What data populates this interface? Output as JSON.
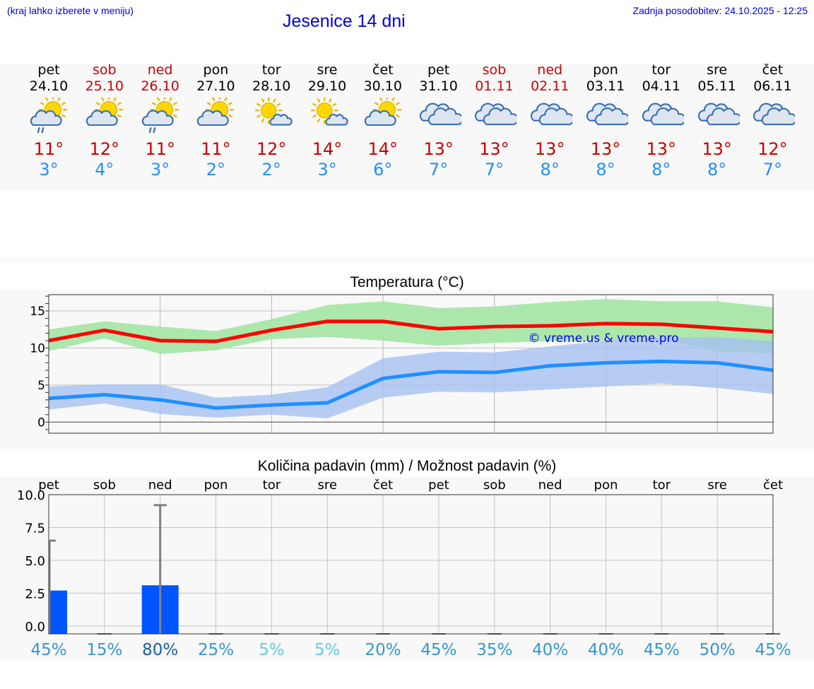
{
  "header": {
    "hint": "(kraj lahko izberete v meniju)",
    "title": "Jesenice 14 dni",
    "updated": "Zadnja posodobitev: 24.10.2025 - 12:25"
  },
  "days": [
    {
      "name": "pet",
      "date": "24.10",
      "weekend": false,
      "icon": "partly-cloudy-rain-icon",
      "max": "11°",
      "min": "3°"
    },
    {
      "name": "sob",
      "date": "25.10",
      "weekend": true,
      "icon": "partly-cloudy-icon",
      "max": "12°",
      "min": "4°"
    },
    {
      "name": "ned",
      "date": "26.10",
      "weekend": true,
      "icon": "partly-cloudy-rain-icon",
      "max": "11°",
      "min": "3°"
    },
    {
      "name": "pon",
      "date": "27.10",
      "weekend": false,
      "icon": "partly-cloudy-icon",
      "max": "11°",
      "min": "2°"
    },
    {
      "name": "tor",
      "date": "28.10",
      "weekend": false,
      "icon": "sun-small-cloud-icon",
      "max": "12°",
      "min": "2°"
    },
    {
      "name": "sre",
      "date": "29.10",
      "weekend": false,
      "icon": "sun-small-cloud-icon",
      "max": "14°",
      "min": "3°"
    },
    {
      "name": "čet",
      "date": "30.10",
      "weekend": false,
      "icon": "partly-cloudy-icon",
      "max": "14°",
      "min": "6°"
    },
    {
      "name": "pet",
      "date": "31.10",
      "weekend": false,
      "icon": "cloudy-icon",
      "max": "13°",
      "min": "7°"
    },
    {
      "name": "sob",
      "date": "01.11",
      "weekend": true,
      "icon": "cloudy-icon",
      "max": "13°",
      "min": "7°"
    },
    {
      "name": "ned",
      "date": "02.11",
      "weekend": true,
      "icon": "cloudy-icon",
      "max": "13°",
      "min": "8°"
    },
    {
      "name": "pon",
      "date": "03.11",
      "weekend": false,
      "icon": "cloudy-icon",
      "max": "13°",
      "min": "8°"
    },
    {
      "name": "tor",
      "date": "04.11",
      "weekend": false,
      "icon": "cloudy-icon",
      "max": "13°",
      "min": "8°"
    },
    {
      "name": "sre",
      "date": "05.11",
      "weekend": false,
      "icon": "cloudy-icon",
      "max": "13°",
      "min": "8°"
    },
    {
      "name": "čet",
      "date": "06.11",
      "weekend": false,
      "icon": "cloudy-icon",
      "max": "12°",
      "min": "7°"
    }
  ],
  "colors": {
    "weekday": "#000000",
    "weekend": "#cc0000",
    "max_line": "#ff0000",
    "min_line": "#1e90ff",
    "max_band": "#a8e6a8",
    "min_band": "#a6c0f0",
    "bar": "#0055ff",
    "watermark": "#0000ee"
  },
  "chart_data": [
    {
      "type": "line",
      "title": "Temperatura (°C)",
      "watermark": "© vreme.us & vreme.pro",
      "x": [
        "24.10",
        "25.10",
        "26.10",
        "27.10",
        "28.10",
        "29.10",
        "30.10",
        "31.10",
        "01.11",
        "02.11",
        "03.11",
        "04.11",
        "05.11",
        "06.11"
      ],
      "yticks": [
        "0",
        "5",
        "10",
        "15"
      ],
      "ylim": [
        -1.5,
        17.2
      ],
      "grid": true,
      "series": [
        {
          "role": "max",
          "values": [
            11.0,
            12.4,
            11.0,
            10.9,
            12.4,
            13.6,
            13.6,
            12.6,
            12.9,
            13.0,
            13.3,
            13.2,
            12.7,
            12.2
          ],
          "band_low": [
            9.6,
            11.3,
            9.2,
            9.7,
            11.2,
            11.5,
            11.0,
            10.3,
            10.7,
            10.9,
            11.0,
            11.3,
            9.5,
            9.3
          ],
          "band_high": [
            12.5,
            13.6,
            12.9,
            12.3,
            13.9,
            15.8,
            16.3,
            15.4,
            15.6,
            16.2,
            16.6,
            16.3,
            16.3,
            15.5
          ]
        },
        {
          "role": "min",
          "values": [
            3.2,
            3.7,
            3.0,
            1.9,
            2.3,
            2.6,
            5.9,
            6.8,
            6.7,
            7.6,
            8.0,
            8.2,
            8.0,
            7.0
          ],
          "band_low": [
            1.7,
            2.5,
            1.1,
            0.6,
            1.0,
            0.5,
            3.3,
            4.1,
            4.0,
            4.4,
            4.8,
            5.2,
            4.6,
            3.8
          ],
          "band_high": [
            4.8,
            5.1,
            5.1,
            3.3,
            3.7,
            4.7,
            8.6,
            9.5,
            9.4,
            10.2,
            11.0,
            11.4,
            11.5,
            10.9
          ]
        }
      ]
    },
    {
      "type": "bar",
      "title": "Količina padavin (mm) / Možnost padavin (%)",
      "categories": [
        "pet",
        "sob",
        "ned",
        "pon",
        "tor",
        "sre",
        "čet",
        "pet",
        "sob",
        "ned",
        "pon",
        "tor",
        "sre",
        "čet"
      ],
      "values": [
        2.7,
        0,
        3.1,
        0,
        0,
        0,
        0,
        0,
        0,
        0,
        0,
        0,
        0,
        0
      ],
      "error_max": [
        6.5,
        0,
        9.2,
        0,
        0,
        0,
        0,
        0,
        0,
        0,
        0,
        0,
        0,
        0
      ],
      "yticks": [
        "0.0",
        "2.5",
        "5.0",
        "7.5",
        "10.0"
      ],
      "ylim": [
        -0.6,
        10.0
      ],
      "grid": true,
      "probabilities": [
        "45%",
        "15%",
        "80%",
        "25%",
        "5%",
        "5%",
        "20%",
        "45%",
        "35%",
        "40%",
        "40%",
        "45%",
        "50%",
        "45%"
      ],
      "probability_colors": [
        "#3399cc",
        "#3399cc",
        "#1a5fa8",
        "#3399cc",
        "#66ccdd",
        "#66ccdd",
        "#3399cc",
        "#3399cc",
        "#3399cc",
        "#3399cc",
        "#3399cc",
        "#3399cc",
        "#3399cc",
        "#3399cc"
      ]
    }
  ]
}
